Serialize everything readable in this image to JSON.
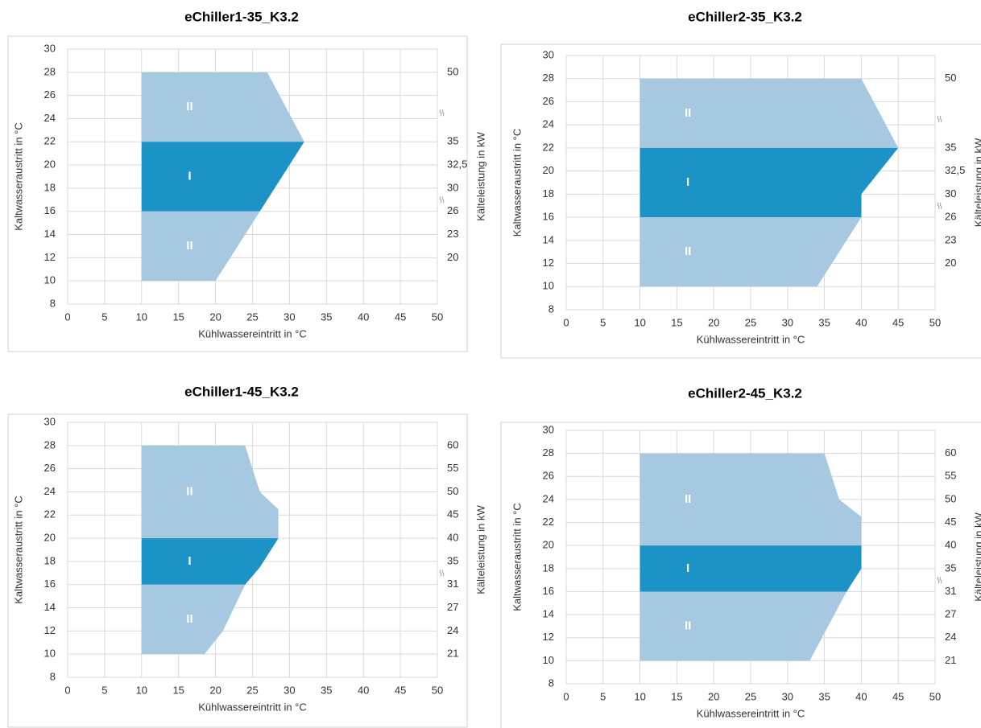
{
  "chart_data": [
    {
      "type": "polygon",
      "title": "eChiller1-35_K3.2",
      "x_label": "Kühlwassereintritt in °C",
      "y_label": "Kaltwasseraustritt in °C",
      "y2_label": "Kälteleistung in kW",
      "xlim": [
        0,
        50
      ],
      "xticks": [
        0,
        5,
        10,
        15,
        20,
        25,
        30,
        35,
        40,
        45,
        50
      ],
      "ylim": [
        8,
        30
      ],
      "yticks": [
        8,
        10,
        12,
        14,
        16,
        18,
        20,
        22,
        24,
        26,
        28,
        30
      ],
      "y2ticks": [
        50,
        35,
        {
          "value": 32.5,
          "label": "32,5"
        },
        30,
        26,
        23,
        20
      ],
      "y2tick_y": [
        28,
        22,
        20,
        18,
        16,
        14,
        12
      ],
      "grid": true,
      "regions": [
        {
          "name": "II",
          "color": "#a6c8e1",
          "x": [
            10,
            10,
            27,
            32
          ],
          "y": [
            22,
            28,
            28,
            22
          ]
        },
        {
          "name": "I",
          "color": "#1b93c6",
          "x": [
            10,
            10,
            32,
            26
          ],
          "y": [
            16,
            22,
            22,
            16
          ]
        },
        {
          "name": "II",
          "color": "#a6c8e1",
          "x": [
            10,
            10,
            26,
            20
          ],
          "y": [
            10,
            16,
            16,
            10
          ]
        }
      ]
    },
    {
      "type": "polygon",
      "title": "eChiller2-35_K3.2",
      "x_label": "Kühlwassereintritt in °C",
      "y_label": "Kaltwasseraustritt in °C",
      "y2_label": "Kälteleistung in kW",
      "xlim": [
        0,
        50
      ],
      "xticks": [
        0,
        5,
        10,
        15,
        20,
        25,
        30,
        35,
        40,
        45,
        50
      ],
      "ylim": [
        8,
        30
      ],
      "yticks": [
        8,
        10,
        12,
        14,
        16,
        18,
        20,
        22,
        24,
        26,
        28,
        30
      ],
      "y2ticks": [
        50,
        35,
        {
          "value": 32.5,
          "label": "32,5"
        },
        30,
        26,
        23,
        20
      ],
      "y2tick_y": [
        28,
        22,
        20,
        18,
        16,
        14,
        12
      ],
      "grid": true,
      "regions": [
        {
          "name": "II",
          "color": "#a6c8e1",
          "x": [
            10,
            10,
            40,
            45
          ],
          "y": [
            22,
            28,
            28,
            22
          ]
        },
        {
          "name": "I",
          "color": "#1b93c6",
          "x": [
            10,
            10,
            45,
            40,
            40
          ],
          "y": [
            16,
            22,
            22,
            18,
            16
          ]
        },
        {
          "name": "II",
          "color": "#a6c8e1",
          "x": [
            10,
            10,
            40,
            34
          ],
          "y": [
            10,
            16,
            16,
            10
          ]
        }
      ]
    },
    {
      "type": "polygon",
      "title": "eChiller1-45_K3.2",
      "x_label": "Kühlwassereintritt in °C",
      "y_label": "Kaltwasseraustritt in °C",
      "y2_label": "Kälteleistung in kW",
      "xlim": [
        0,
        50
      ],
      "xticks": [
        0,
        5,
        10,
        15,
        20,
        25,
        30,
        35,
        40,
        45,
        50
      ],
      "ylim": [
        8,
        30
      ],
      "yticks": [
        8,
        10,
        12,
        14,
        16,
        18,
        20,
        22,
        24,
        26,
        28,
        30
      ],
      "y2ticks": [
        60,
        55,
        50,
        45,
        40,
        35,
        31,
        27,
        24,
        21
      ],
      "y2tick_y": [
        28,
        26,
        24,
        22,
        20,
        18,
        16,
        14,
        12,
        10
      ],
      "grid": true,
      "regions": [
        {
          "name": "II",
          "color": "#a6c8e1",
          "x": [
            10,
            10,
            24,
            26,
            28.5,
            28.5
          ],
          "y": [
            20,
            28,
            28,
            24,
            22.5,
            20
          ]
        },
        {
          "name": "I",
          "color": "#1b93c6",
          "x": [
            10,
            10,
            28.5,
            26,
            24
          ],
          "y": [
            16,
            20,
            20,
            17.5,
            16
          ]
        },
        {
          "name": "II",
          "color": "#a6c8e1",
          "x": [
            10,
            10,
            24,
            21,
            18.5
          ],
          "y": [
            10,
            16,
            16,
            12,
            10
          ]
        }
      ]
    },
    {
      "type": "polygon",
      "title": "eChiller2-45_K3.2",
      "x_label": "Kühlwassereintritt in °C",
      "y_label": "Kaltwasseraustritt in °C",
      "y2_label": "Kälteleistung in kW",
      "xlim": [
        0,
        50
      ],
      "xticks": [
        0,
        5,
        10,
        15,
        20,
        25,
        30,
        35,
        40,
        45,
        50
      ],
      "ylim": [
        8,
        30
      ],
      "yticks": [
        8,
        10,
        12,
        14,
        16,
        18,
        20,
        22,
        24,
        26,
        28,
        30
      ],
      "y2ticks": [
        60,
        55,
        50,
        45,
        40,
        35,
        31,
        27,
        24,
        21
      ],
      "y2tick_y": [
        28,
        26,
        24,
        22,
        20,
        18,
        16,
        14,
        12,
        10
      ],
      "grid": true,
      "regions": [
        {
          "name": "II",
          "color": "#a6c8e1",
          "x": [
            10,
            10,
            35,
            37,
            40,
            40
          ],
          "y": [
            20,
            28,
            28,
            24,
            22.5,
            20
          ]
        },
        {
          "name": "I",
          "color": "#1b93c6",
          "x": [
            10,
            10,
            40,
            40,
            38
          ],
          "y": [
            16,
            20,
            20,
            18,
            16
          ]
        },
        {
          "name": "II",
          "color": "#a6c8e1",
          "x": [
            10,
            10,
            38,
            33
          ],
          "y": [
            10,
            16,
            16,
            10
          ]
        }
      ]
    }
  ]
}
